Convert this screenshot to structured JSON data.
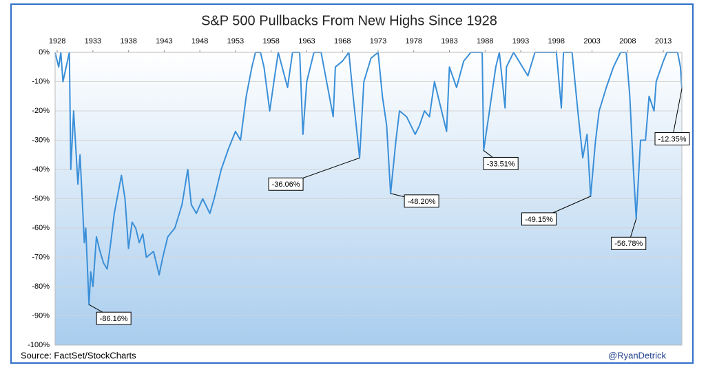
{
  "chart_data": {
    "type": "line",
    "title": "S&P 500 Pullbacks From New Highs Since 1928",
    "source": "Source:  FactSet/StockCharts",
    "credit": "@RyanDetrick",
    "xlim": [
      1927.7,
      2015.6
    ],
    "xticks": [
      1928,
      1933,
      1938,
      1943,
      1948,
      1953,
      1958,
      1963,
      1968,
      1973,
      1978,
      1983,
      1988,
      1993,
      1998,
      2003,
      2008,
      2013
    ],
    "ylim": [
      -100,
      0
    ],
    "yticks": [
      {
        "value": 0,
        "label": "0%"
      },
      {
        "value": -10,
        "label": "-10%"
      },
      {
        "value": -20,
        "label": "-20%"
      },
      {
        "value": -30,
        "label": "-30%"
      },
      {
        "value": -40,
        "label": "-40%"
      },
      {
        "value": -50,
        "label": "-50%"
      },
      {
        "value": -60,
        "label": "-60%"
      },
      {
        "value": -70,
        "label": "-70%"
      },
      {
        "value": -80,
        "label": "-80%"
      },
      {
        "value": -90,
        "label": "-90%"
      },
      {
        "value": -100,
        "label": "-100%"
      }
    ],
    "grid": true,
    "series": [
      {
        "color": "#3a8fd8",
        "x": [
          1927.7,
          1928.2,
          1928.5,
          1928.8,
          1929.7,
          1929.9,
          1930.3,
          1930.9,
          1931.2,
          1931.8,
          1932.0,
          1932.45,
          1932.7,
          1933.0,
          1933.5,
          1934.0,
          1934.5,
          1935.0,
          1935.5,
          1936.0,
          1937.0,
          1937.5,
          1938.0,
          1938.5,
          1939.0,
          1939.5,
          1940.0,
          1940.5,
          1941.5,
          1942.3,
          1942.8,
          1943.5,
          1944.5,
          1945.5,
          1946.3,
          1946.8,
          1947.5,
          1948.4,
          1949.4,
          1950.0,
          1950.5,
          1951.0,
          1952.0,
          1953.0,
          1953.7,
          1954.5,
          1955.3,
          1955.8,
          1956.5,
          1957.0,
          1957.8,
          1958.5,
          1959.0,
          1960.3,
          1961.0,
          1962.0,
          1962.45,
          1963.0,
          1964.0,
          1965.0,
          1966.7,
          1967.0,
          1968.0,
          1968.9,
          1969.5,
          1970.4,
          1971.0,
          1972.0,
          1973.0,
          1973.6,
          1974.2,
          1974.75,
          1975.5,
          1976.0,
          1977.0,
          1978.2,
          1978.8,
          1979.5,
          1980.2,
          1980.9,
          1982.6,
          1983.0,
          1984.0,
          1985.0,
          1986.0,
          1987.6,
          1987.8,
          1988.5,
          1989.5,
          1990.0,
          1990.8,
          1991.0,
          1992.0,
          1994.0,
          1995.0,
          1998.0,
          1998.7,
          1999.0,
          2000.2,
          2001.0,
          2001.7,
          2002.3,
          2002.8,
          2003.5,
          2004.0,
          2005.0,
          2006.0,
          2007.0,
          2007.8,
          2008.3,
          2008.8,
          2009.2,
          2009.8,
          2010.5,
          2011.0,
          2011.7,
          2012.0,
          2013.0,
          2013.5,
          2015.0,
          2015.4,
          2015.6
        ],
        "values": [
          0,
          -5,
          0,
          -10,
          0,
          -40,
          -20,
          -45,
          -35,
          -65,
          -60,
          -86.16,
          -75,
          -80,
          -63,
          -68,
          -72,
          -74,
          -65,
          -55,
          -42,
          -50,
          -67,
          -58,
          -60,
          -65,
          -62,
          -70,
          -68,
          -76,
          -70,
          -63,
          -60,
          -52,
          -40,
          -52,
          -55,
          -50,
          -55,
          -50,
          -45,
          -40,
          -33,
          -27,
          -30,
          -15,
          -5,
          0,
          0,
          -5,
          -20,
          -8,
          0,
          -12,
          0,
          0,
          -28,
          -10,
          0,
          0,
          -22,
          -5,
          -3,
          0,
          -15,
          -36.06,
          -10,
          -2,
          0,
          -15,
          -25,
          -48.2,
          -30,
          -20,
          -22,
          -28,
          -25,
          -20,
          -22,
          -10,
          -27,
          -5,
          -12,
          -3,
          0,
          0,
          -33.51,
          -22,
          -5,
          0,
          -19,
          -5,
          0,
          -8,
          0,
          0,
          -19,
          0,
          0,
          -20,
          -36,
          -28,
          -49.15,
          -30,
          -20,
          -12,
          -5,
          0,
          0,
          -15,
          -40,
          -56.78,
          -30,
          -30,
          -15,
          -20,
          -10,
          -3,
          0,
          0,
          -5,
          -12.35
        ]
      }
    ],
    "annotations": [
      {
        "x": 1932.45,
        "value": -86.16,
        "label": "-86.16%"
      },
      {
        "x": 1970.4,
        "value": -36.06,
        "label": "-36.06%"
      },
      {
        "x": 1974.75,
        "value": -48.2,
        "label": "-48.20%"
      },
      {
        "x": 1987.8,
        "value": -33.51,
        "label": "-33.51%"
      },
      {
        "x": 2002.8,
        "value": -49.15,
        "label": "-49.15%"
      },
      {
        "x": 2009.2,
        "value": -56.78,
        "label": "-56.78%"
      },
      {
        "x": 2015.6,
        "value": -12.35,
        "label": "-12.35%"
      }
    ]
  }
}
